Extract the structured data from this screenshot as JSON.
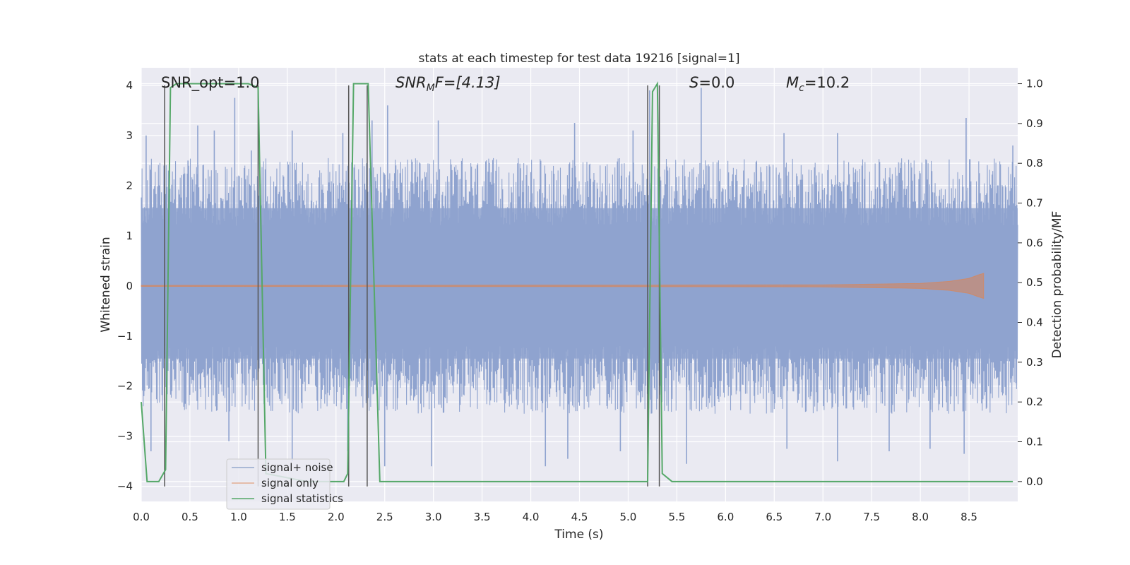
{
  "chart_data": {
    "type": "line",
    "title": "stats at each timestep for test data 19216 [signal=1]",
    "xlabel": "Time (s)",
    "ylabel": "Whitened strain",
    "ylabel_right": "Detection probability/MF",
    "xlim": [
      0.0,
      9.0
    ],
    "ylim": [
      -4.3,
      4.35
    ],
    "ylim_right": [
      -0.05,
      1.04
    ],
    "x_ticks": [
      0.0,
      0.5,
      1.0,
      1.5,
      2.0,
      2.5,
      3.0,
      3.5,
      4.0,
      4.5,
      5.0,
      5.5,
      6.0,
      6.5,
      7.0,
      7.5,
      8.0,
      8.5
    ],
    "x_tick_labels": [
      "0.0",
      "0.5",
      "1.0",
      "1.5",
      "2.0",
      "2.5",
      "3.0",
      "3.5",
      "4.0",
      "4.5",
      "5.0",
      "5.5",
      "6.0",
      "6.5",
      "7.0",
      "7.5",
      "8.0",
      "8.5"
    ],
    "y_ticks": [
      -4,
      -3,
      -2,
      -1,
      0,
      1,
      2,
      3,
      4
    ],
    "y_tick_labels": [
      "−4",
      "−3",
      "−2",
      "−1",
      "0",
      "1",
      "2",
      "3",
      "4"
    ],
    "y_ticks_right": [
      0.0,
      0.1,
      0.2,
      0.3,
      0.4,
      0.5,
      0.6,
      0.7,
      0.8,
      0.9,
      1.0
    ],
    "y_tick_labels_right": [
      "0.0",
      "0.1",
      "0.2",
      "0.3",
      "0.4",
      "0.5",
      "0.6",
      "0.7",
      "0.8",
      "0.9",
      "1.0"
    ],
    "grid": true,
    "background": "#eaeaf2",
    "annotations": {
      "snr_opt": "SNR_opt=1.0",
      "snr_mf_main": "SNR",
      "snr_mf_sub": "M",
      "snr_mf_rest": "F=[4.13]",
      "s_main": "S",
      "s_rest": "=0.0",
      "mc_main": "M",
      "mc_sub": "c",
      "mc_rest": "=10.2"
    },
    "legend": {
      "placement": "lower-left",
      "entries": [
        {
          "label": "signal+ noise",
          "color": "#4c72b0"
        },
        {
          "label": "signal only",
          "color": "#dd8452"
        },
        {
          "label": "signal statistics",
          "color": "#55a868"
        }
      ]
    },
    "series": [
      {
        "name": "signal+ noise",
        "color": "#8fa3cf",
        "description": "whitened noisy strain, dense samples between about -4 and 4",
        "peak_highs": [
          [
            0.05,
            3.0
          ],
          [
            0.28,
            2.3
          ],
          [
            0.48,
            2.5
          ],
          [
            0.58,
            3.2
          ],
          [
            0.75,
            3.1
          ],
          [
            0.96,
            3.75
          ],
          [
            1.13,
            2.7
          ],
          [
            1.55,
            3.1
          ],
          [
            2.07,
            3.05
          ],
          [
            2.37,
            3.3
          ],
          [
            2.53,
            3.6
          ],
          [
            3.05,
            3.3
          ],
          [
            4.45,
            3.25
          ],
          [
            5.05,
            3.1
          ],
          [
            5.22,
            3.9
          ],
          [
            5.75,
            3.95
          ],
          [
            6.6,
            3.05
          ],
          [
            7.15,
            3.05
          ],
          [
            8.47,
            3.35
          ],
          [
            8.95,
            2.8
          ]
        ],
        "peak_lows": [
          [
            0.1,
            -3.3
          ],
          [
            0.9,
            -3.1
          ],
          [
            1.55,
            -3.5
          ],
          [
            2.12,
            -3.3
          ],
          [
            2.5,
            -3.6
          ],
          [
            2.98,
            -3.6
          ],
          [
            4.15,
            -3.6
          ],
          [
            4.38,
            -3.45
          ],
          [
            4.92,
            -3.3
          ],
          [
            5.6,
            -3.55
          ],
          [
            6.63,
            -3.25
          ],
          [
            7.15,
            -3.5
          ],
          [
            7.68,
            -3.3
          ],
          [
            8.1,
            -3.25
          ],
          [
            8.45,
            -3.35
          ]
        ]
      },
      {
        "name": "signal only",
        "color": "#dd8452",
        "description": "near-zero chirp growing toward merger",
        "x": [
          0.0,
          5.0,
          7.0,
          8.0,
          8.3,
          8.5,
          8.6,
          8.65
        ],
        "envelope": [
          0.01,
          0.015,
          0.02,
          0.05,
          0.09,
          0.15,
          0.22,
          0.25
        ]
      },
      {
        "name": "signal statistics",
        "color": "#55a868",
        "axis": "right",
        "x": [
          0.0,
          0.06,
          0.18,
          0.25,
          0.3,
          0.36,
          1.1,
          1.2,
          1.28,
          1.7,
          2.08,
          2.12,
          2.18,
          2.33,
          2.45,
          5.2,
          5.25,
          5.3,
          5.35,
          5.45,
          6.0,
          8.95
        ],
        "y": [
          0.2,
          0.0,
          0.0,
          0.03,
          0.99,
          1.0,
          1.0,
          0.99,
          0.02,
          0.0,
          0.0,
          0.02,
          1.0,
          1.0,
          0.0,
          0.0,
          0.98,
          1.0,
          0.02,
          0.0,
          0.0,
          0.0
        ]
      }
    ],
    "vertical_markers": [
      0.24,
      1.2,
      2.13,
      2.32,
      5.2,
      5.32
    ]
  }
}
